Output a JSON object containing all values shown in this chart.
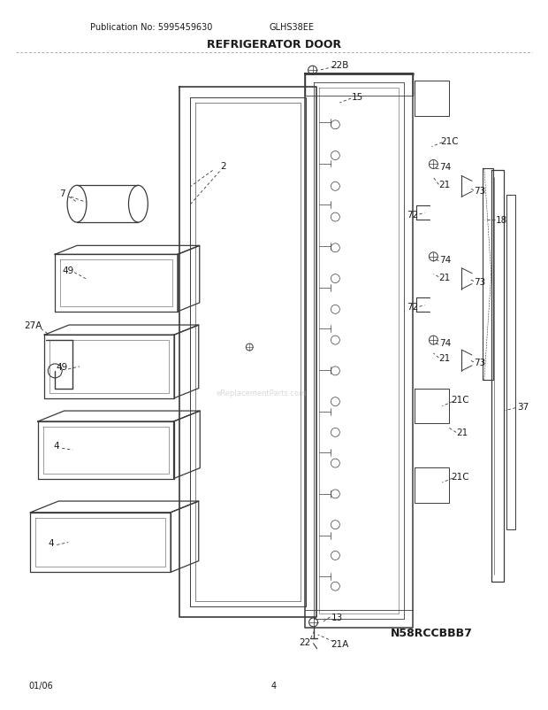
{
  "title": "REFRIGERATOR DOOR",
  "pub_no": "Publication No: 5995459630",
  "model": "GLHS38EE",
  "diagram_id": "N58RCCBBB7",
  "page": "4",
  "date": "01/06",
  "bg_color": "#ffffff",
  "line_color": "#3a3a3a"
}
